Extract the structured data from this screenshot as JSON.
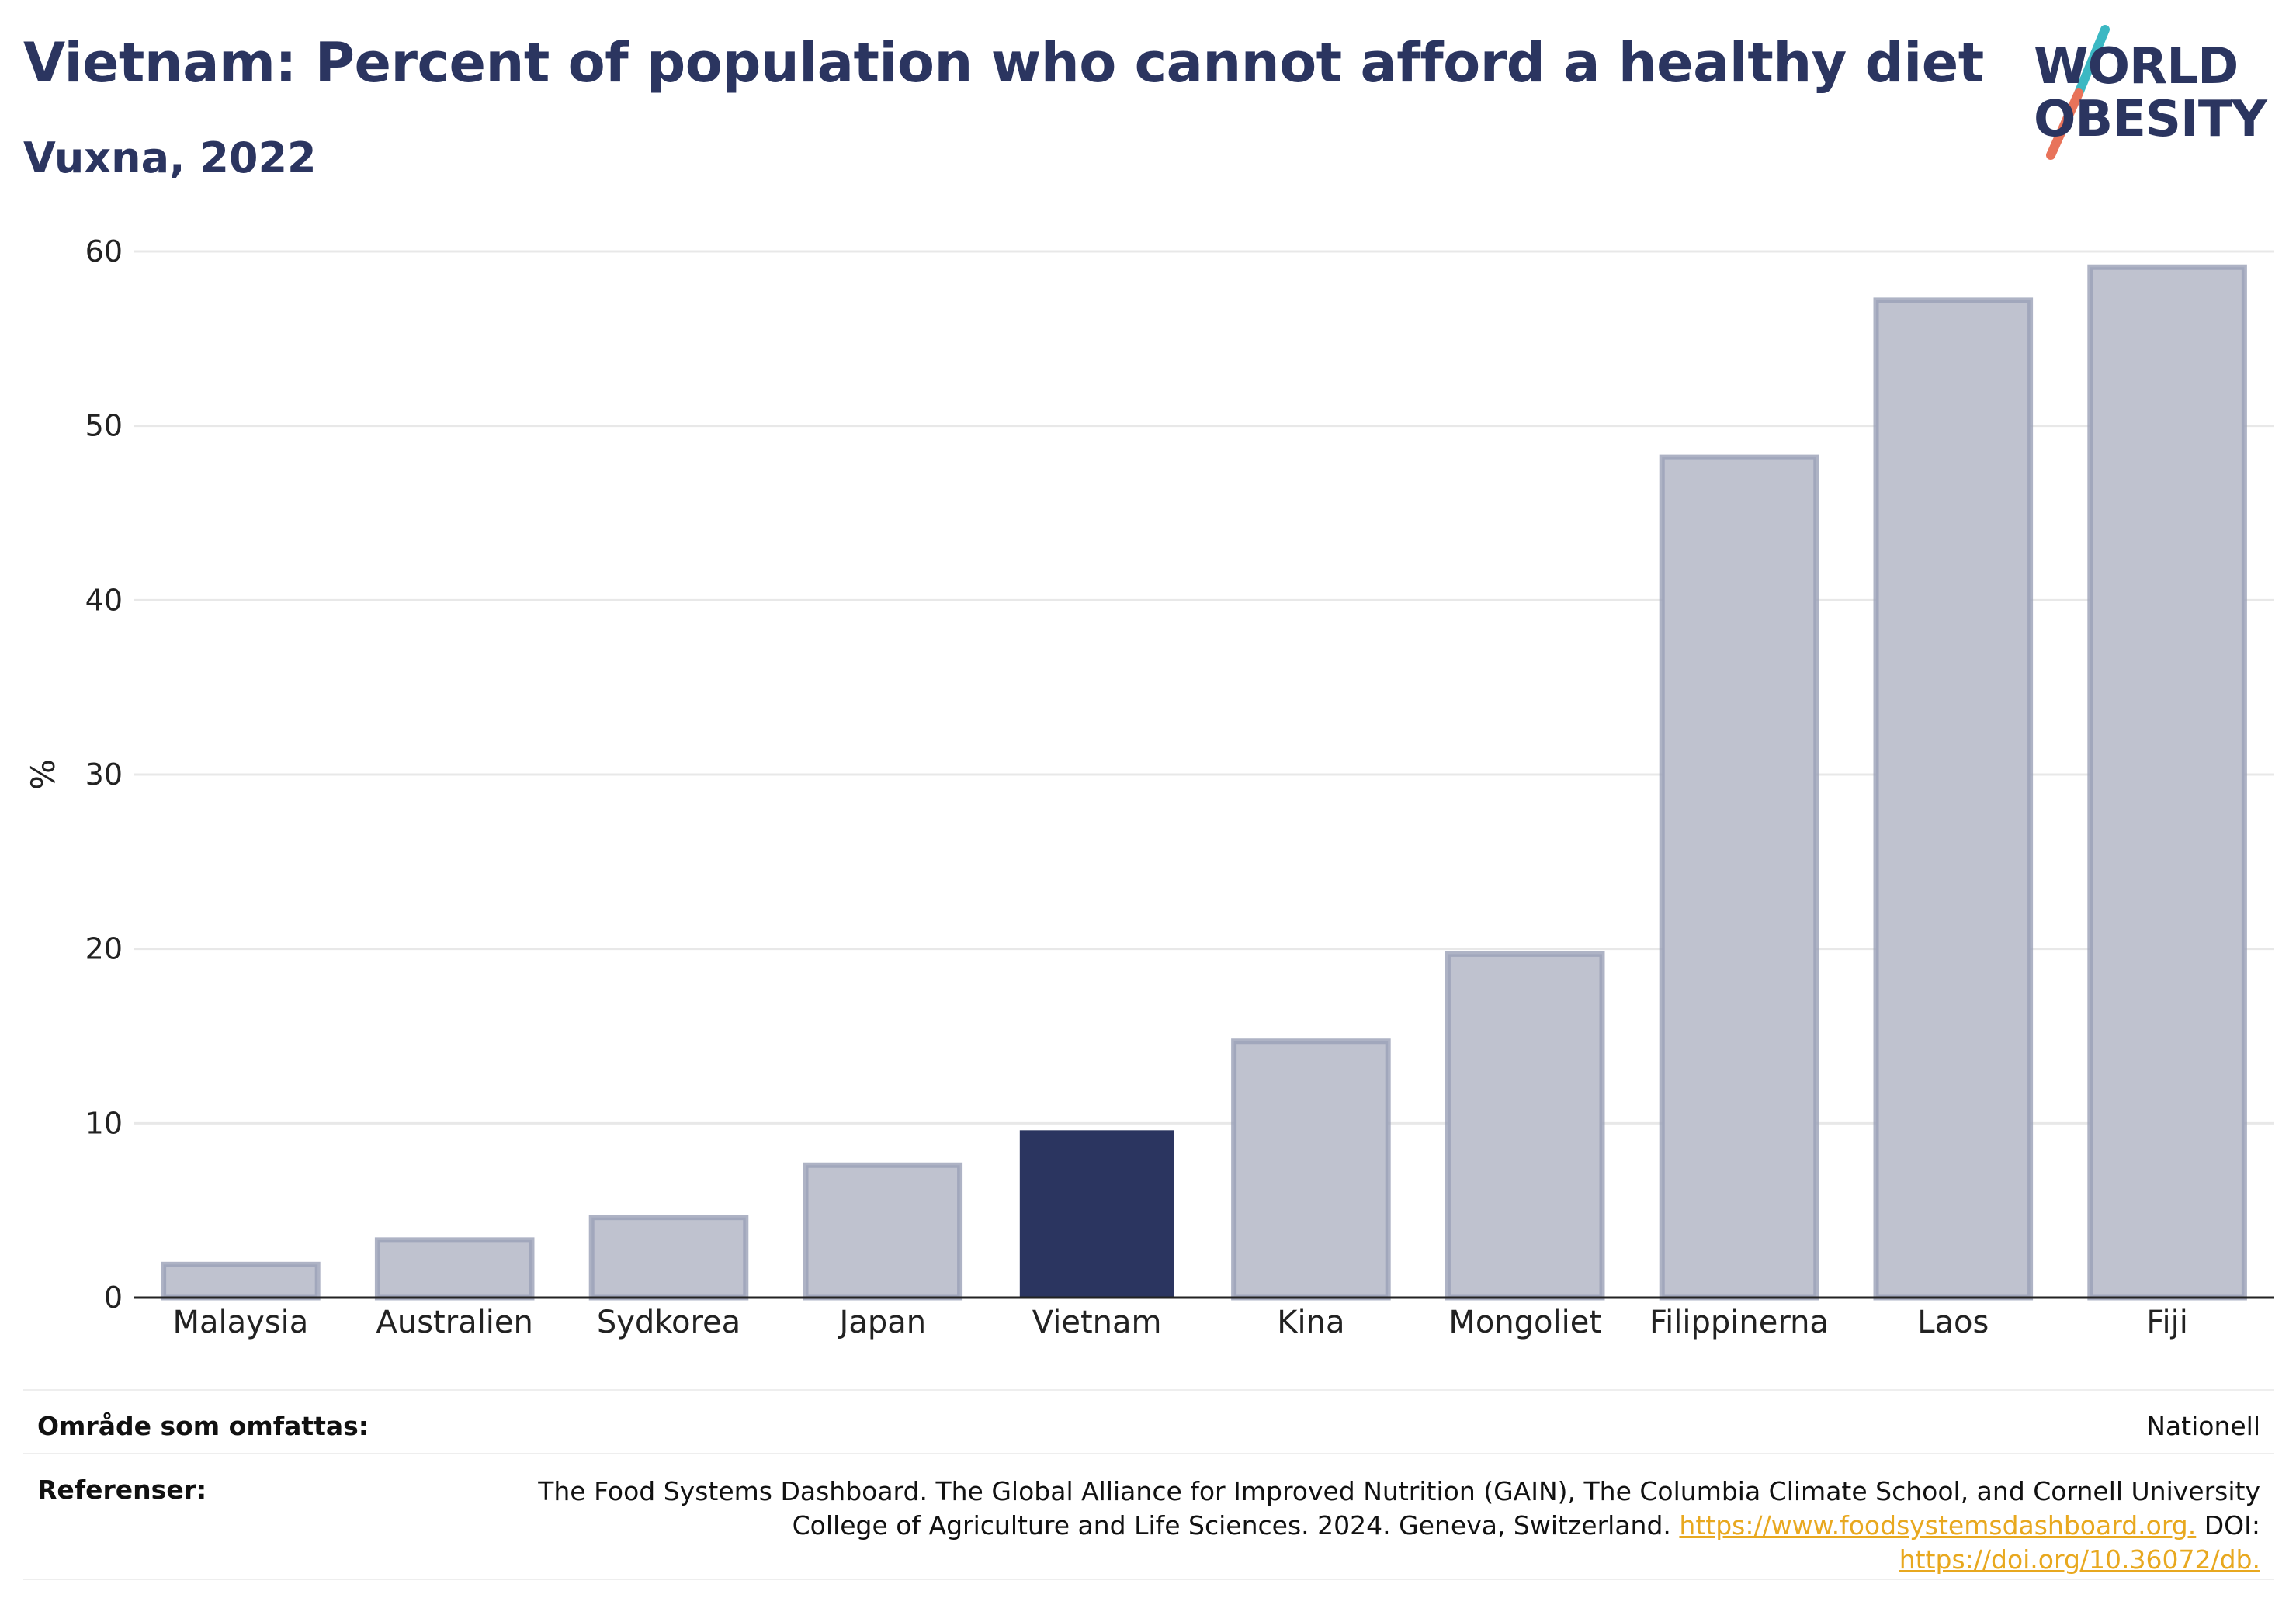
{
  "title": "Vietnam: Percent of population who cannot afford a healthy diet",
  "subtitle": "Vuxna, 2022",
  "logo": {
    "line1": "WORLD",
    "line2": "OBESITY",
    "slash_colors": [
      "#3bb8c3",
      "#e8735a"
    ]
  },
  "colors": {
    "highlight": "#2b3560",
    "bar": "#bfc2cf",
    "bar_stroke": "#9aa0b6",
    "link": "#e8a81f",
    "grid": "#e8e8e8"
  },
  "chart_data": {
    "type": "bar",
    "categories": [
      "Malaysia",
      "Australien",
      "Sydkorea",
      "Japan",
      "Vietnam",
      "Kina",
      "Mongoliet",
      "Filippinerna",
      "Laos",
      "Fiji"
    ],
    "values": [
      1.9,
      3.3,
      4.6,
      7.6,
      9.6,
      14.7,
      19.7,
      48.2,
      57.2,
      59.1
    ],
    "highlight": "Vietnam",
    "xlabel": "",
    "ylabel": "%",
    "ylim": [
      0,
      60
    ],
    "yticks": [
      0,
      10,
      20,
      30,
      40,
      50,
      60
    ],
    "grid": true
  },
  "footer": {
    "coverage_label": "Område som omfattas:",
    "coverage_value": "Nationell",
    "references_label": "Referenser:",
    "references_text": "The Food Systems Dashboard. The Global Alliance for Improved Nutrition (GAIN), The Columbia Climate School, and Cornell University College of Agriculture and Life Sciences. 2024. Geneva, Switzerland.",
    "references_link1": "https://www.foodsystemsdashboard.org.",
    "references_doi_prefix": "DOI:",
    "references_link2": "https://doi.org/10.36072/db."
  }
}
